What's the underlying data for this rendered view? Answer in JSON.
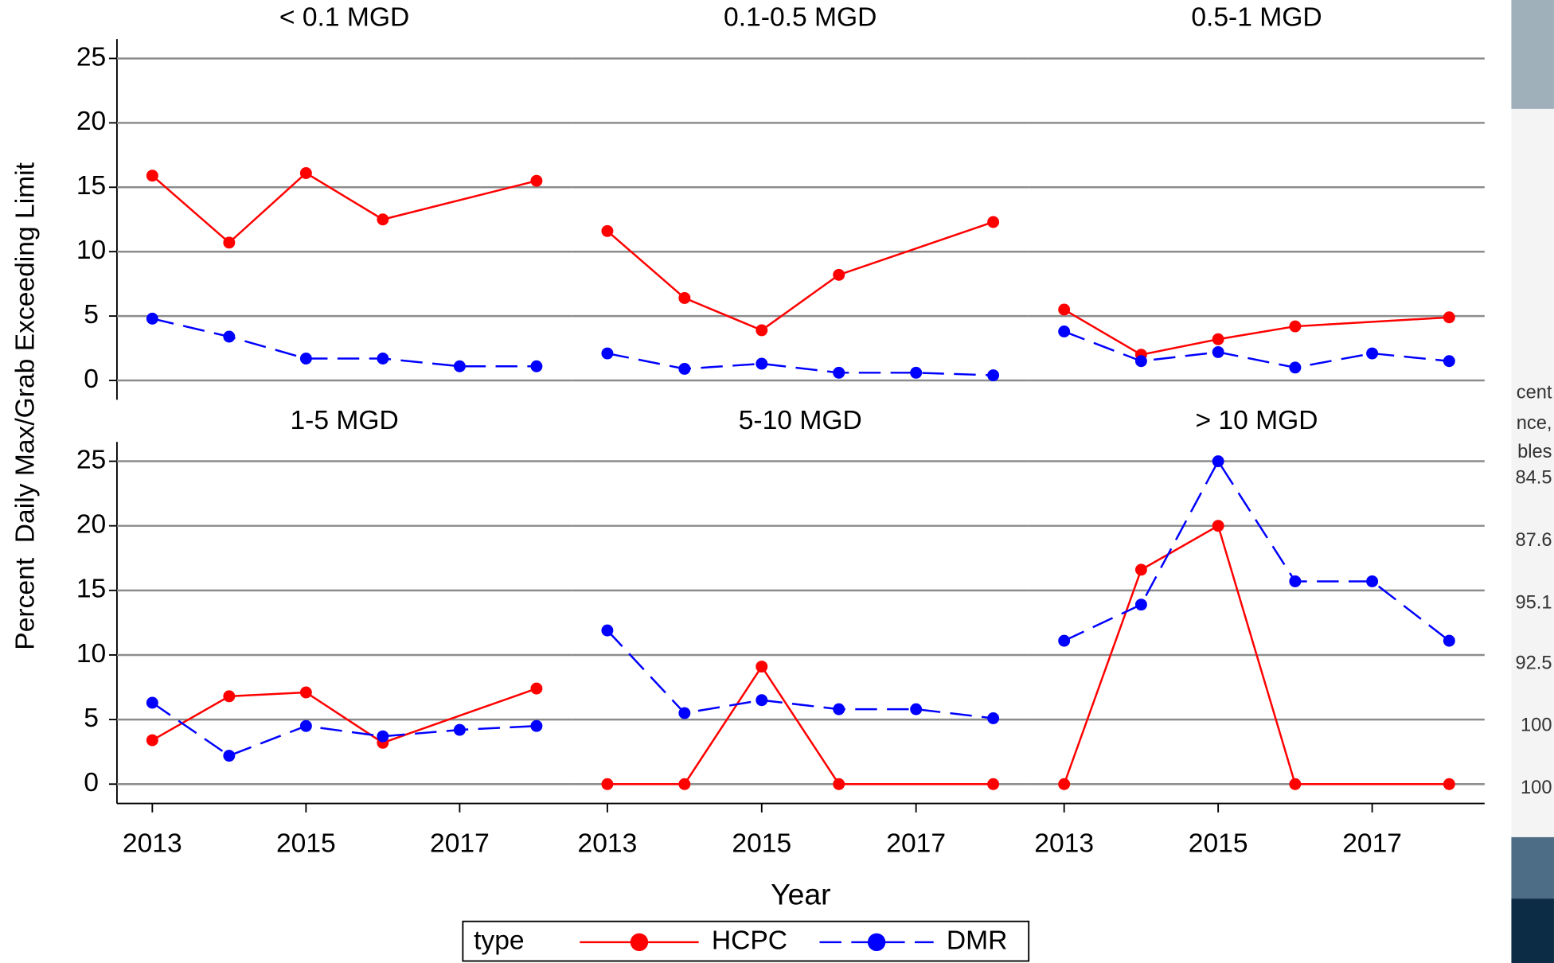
{
  "figure": {
    "ylabel": "Percent  Daily Max/Grab Exceeding Limit",
    "xlabel": "Year",
    "legend_title": "type"
  },
  "chart_data": [
    {
      "type": "line",
      "title": "< 0.1 MGD",
      "xlim": [
        2012.54,
        2018.46
      ],
      "ylim": [
        -1.5,
        26.5
      ],
      "yticks": [
        0,
        5,
        10,
        15,
        20,
        25
      ],
      "grid": true,
      "series": [
        {
          "name": "HCPC",
          "color": "#ff0000",
          "dash": false,
          "x": [
            2013,
            2014,
            2015,
            2016,
            2018
          ],
          "values": [
            15.9,
            10.7,
            16.1,
            12.5,
            15.5
          ]
        },
        {
          "name": "DMR",
          "color": "#0000ff",
          "dash": true,
          "x": [
            2013,
            2014,
            2015,
            2016,
            2017,
            2018
          ],
          "values": [
            4.8,
            3.4,
            1.7,
            1.7,
            1.1,
            1.1
          ]
        }
      ]
    },
    {
      "type": "line",
      "title": "0.1-0.5 MGD",
      "xlim": [
        2012.54,
        2018.46
      ],
      "ylim": [
        -1.5,
        26.5
      ],
      "grid": true,
      "series": [
        {
          "name": "HCPC",
          "color": "#ff0000",
          "dash": false,
          "x": [
            2013,
            2014,
            2015,
            2016,
            2018
          ],
          "values": [
            11.6,
            6.4,
            3.9,
            8.2,
            12.3
          ]
        },
        {
          "name": "DMR",
          "color": "#0000ff",
          "dash": true,
          "x": [
            2013,
            2014,
            2015,
            2016,
            2017,
            2018
          ],
          "values": [
            2.1,
            0.9,
            1.3,
            0.6,
            0.6,
            0.4
          ]
        }
      ]
    },
    {
      "type": "line",
      "title": "0.5-1 MGD",
      "xlim": [
        2012.54,
        2018.46
      ],
      "ylim": [
        -1.5,
        26.5
      ],
      "grid": true,
      "series": [
        {
          "name": "HCPC",
          "color": "#ff0000",
          "dash": false,
          "x": [
            2013,
            2014,
            2015,
            2016,
            2018
          ],
          "values": [
            5.5,
            2.0,
            3.2,
            4.2,
            4.9
          ]
        },
        {
          "name": "DMR",
          "color": "#0000ff",
          "dash": true,
          "x": [
            2013,
            2014,
            2015,
            2016,
            2017,
            2018
          ],
          "values": [
            3.8,
            1.5,
            2.2,
            1.0,
            2.1,
            1.5
          ]
        }
      ]
    },
    {
      "type": "line",
      "title": "1-5 MGD",
      "xlim": [
        2012.54,
        2018.46
      ],
      "ylim": [
        -1.5,
        26.5
      ],
      "yticks": [
        0,
        5,
        10,
        15,
        20,
        25
      ],
      "xticks": [
        2013,
        2015,
        2017
      ],
      "grid": true,
      "series": [
        {
          "name": "HCPC",
          "color": "#ff0000",
          "dash": false,
          "x": [
            2013,
            2014,
            2015,
            2016,
            2018
          ],
          "values": [
            3.4,
            6.8,
            7.1,
            3.2,
            7.4
          ]
        },
        {
          "name": "DMR",
          "color": "#0000ff",
          "dash": true,
          "x": [
            2013,
            2014,
            2015,
            2016,
            2017,
            2018
          ],
          "values": [
            6.3,
            2.2,
            4.5,
            3.7,
            4.2,
            4.5
          ]
        }
      ]
    },
    {
      "type": "line",
      "title": "5-10 MGD",
      "xlim": [
        2012.54,
        2018.46
      ],
      "ylim": [
        -1.5,
        26.5
      ],
      "xticks": [
        2013,
        2015,
        2017
      ],
      "grid": true,
      "series": [
        {
          "name": "HCPC",
          "color": "#ff0000",
          "dash": false,
          "x": [
            2013,
            2014,
            2015,
            2016,
            2018
          ],
          "values": [
            0,
            0,
            9.1,
            0,
            0
          ]
        },
        {
          "name": "DMR",
          "color": "#0000ff",
          "dash": true,
          "x": [
            2013,
            2014,
            2015,
            2016,
            2017,
            2018
          ],
          "values": [
            11.9,
            5.5,
            6.5,
            5.8,
            5.8,
            5.1
          ]
        }
      ]
    },
    {
      "type": "line",
      "title": "> 10 MGD",
      "xlim": [
        2012.54,
        2018.46
      ],
      "ylim": [
        -1.5,
        26.5
      ],
      "xticks": [
        2013,
        2015,
        2017
      ],
      "grid": true,
      "series": [
        {
          "name": "HCPC",
          "color": "#ff0000",
          "dash": false,
          "x": [
            2013,
            2014,
            2015,
            2016,
            2018
          ],
          "values": [
            0,
            16.6,
            20,
            0,
            0
          ]
        },
        {
          "name": "DMR",
          "color": "#0000ff",
          "dash": true,
          "x": [
            2013,
            2014,
            2015,
            2016,
            2017,
            2018
          ],
          "values": [
            11.1,
            13.9,
            25,
            15.7,
            15.7,
            11.1
          ]
        }
      ]
    }
  ],
  "side_fragments": [
    "cent",
    "nce,",
    "bles",
    "84.5",
    "87.6",
    "95.1",
    "92.5",
    "100",
    "100"
  ]
}
